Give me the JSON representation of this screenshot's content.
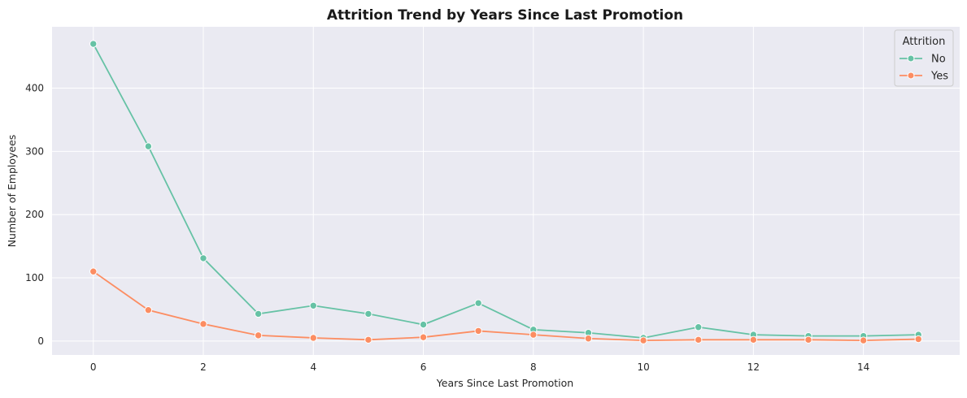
{
  "chart_data": {
    "type": "line",
    "title": "Attrition Trend by Years Since Last Promotion",
    "xlabel": "Years Since Last Promotion",
    "ylabel": "Number of Employees",
    "xlim": [
      -0.75,
      15.75
    ],
    "ylim": [
      -22,
      497
    ],
    "xticks": [
      0,
      2,
      4,
      6,
      8,
      10,
      12,
      14
    ],
    "yticks": [
      0,
      100,
      200,
      300,
      400
    ],
    "grid": true,
    "legend": {
      "title": "Attrition",
      "position": "top-right"
    },
    "x": [
      0,
      1,
      2,
      3,
      4,
      5,
      6,
      7,
      8,
      9,
      10,
      11,
      12,
      13,
      14,
      15
    ],
    "series": [
      {
        "name": "No",
        "color": "#66c2a5",
        "values": [
          470,
          308,
          131,
          43,
          56,
          43,
          26,
          60,
          18,
          13,
          5,
          22,
          10,
          8,
          8,
          10
        ]
      },
      {
        "name": "Yes",
        "color": "#fc8d62",
        "values": [
          110,
          49,
          27,
          9,
          5,
          2,
          6,
          16,
          10,
          4,
          1,
          2,
          2,
          2,
          1,
          3
        ]
      }
    ]
  },
  "style": {
    "plot_bg": "#eaeaf2",
    "grid_color": "#ffffff"
  }
}
